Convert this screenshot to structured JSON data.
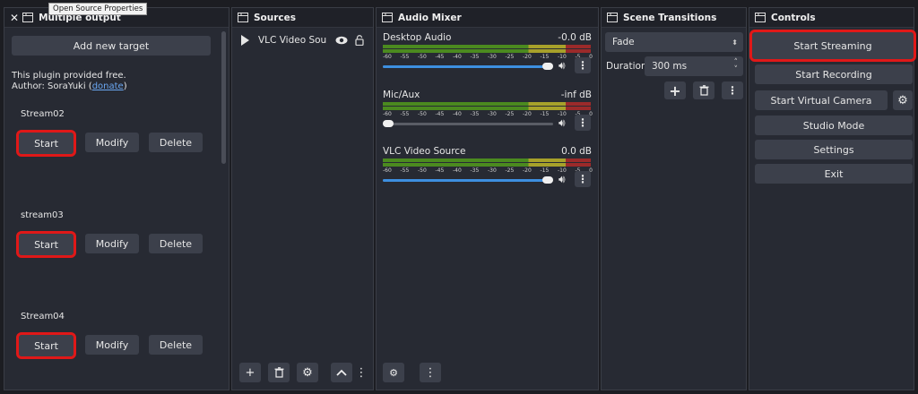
{
  "tooltip": "Open Source Properties",
  "multiple_output": {
    "title": "Multiple output",
    "add_target_label": "Add new target",
    "info_line1": "This plugin provided free.",
    "info_line2_prefix": "Author: SoraYuki (",
    "info_link": "donate",
    "info_line2_suffix": ")",
    "targets": [
      {
        "name": "Stream02",
        "start": "Start",
        "modify": "Modify",
        "delete": "Delete"
      },
      {
        "name": "stream03",
        "start": "Start",
        "modify": "Modify",
        "delete": "Delete"
      },
      {
        "name": "Stream04",
        "start": "Start",
        "modify": "Modify",
        "delete": "Delete"
      }
    ]
  },
  "sources": {
    "title": "Sources",
    "items": [
      {
        "name": "VLC Video Sou"
      }
    ]
  },
  "audio_mixer": {
    "title": "Audio Mixer",
    "ticks": [
      "-60",
      "-55",
      "-50",
      "-45",
      "-40",
      "-35",
      "-30",
      "-25",
      "-20",
      "-15",
      "-10",
      "-5",
      "0"
    ],
    "channels": [
      {
        "name": "Desktop Audio",
        "db": "-0.0 dB",
        "volume": 1.0
      },
      {
        "name": "Mic/Aux",
        "db": "-inf dB",
        "volume": 0.0
      },
      {
        "name": "VLC Video Source",
        "db": "0.0 dB",
        "volume": 1.0
      }
    ]
  },
  "scene_transitions": {
    "title": "Scene Transitions",
    "transition": "Fade",
    "duration_label": "Duration",
    "duration_value": "300 ms"
  },
  "controls": {
    "title": "Controls",
    "start_streaming": "Start Streaming",
    "start_recording": "Start Recording",
    "start_virtual_camera": "Start Virtual Camera",
    "studio_mode": "Studio Mode",
    "settings": "Settings",
    "exit": "Exit"
  },
  "colors": {
    "accent_highlight": "#e01818",
    "slider_fill": "#3d8fe0",
    "link": "#6aa7f2"
  }
}
